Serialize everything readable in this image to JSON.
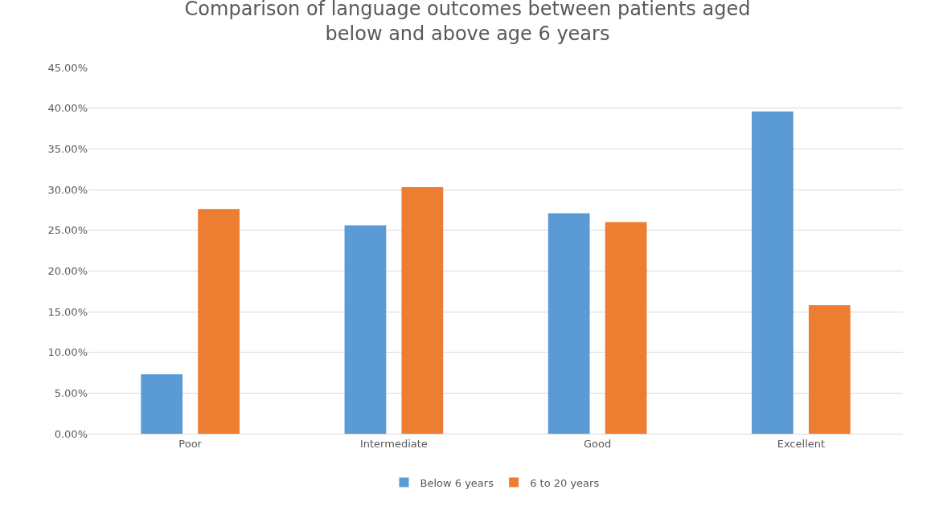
{
  "chart_data": {
    "type": "bar",
    "title": "Comparison of language outcomes between patients aged below and above age 6 years",
    "categories": [
      "Poor",
      "Intermediate",
      "Good",
      "Excellent"
    ],
    "series": [
      {
        "name": "Below 6 years",
        "color": "#5b9bd5",
        "values": [
          7.3,
          25.6,
          27.1,
          39.6
        ]
      },
      {
        "name": "6 to 20 years",
        "color": "#ed7d31",
        "values": [
          27.6,
          30.3,
          26.0,
          15.8
        ]
      }
    ],
    "ylim": [
      0,
      45
    ],
    "yticks": [
      {
        "value": 0,
        "label": "0.00%"
      },
      {
        "value": 5,
        "label": "5.00%"
      },
      {
        "value": 10,
        "label": "10.00%"
      },
      {
        "value": 15,
        "label": "15.00%"
      },
      {
        "value": 20,
        "label": "20.00%"
      },
      {
        "value": 25,
        "label": "25.00%"
      },
      {
        "value": 30,
        "label": "30.00%"
      },
      {
        "value": 35,
        "label": "35.00%"
      },
      {
        "value": 40,
        "label": "40.00%"
      },
      {
        "value": 45,
        "label": "45.00%"
      }
    ],
    "grid": "y",
    "legend": "bottom"
  }
}
